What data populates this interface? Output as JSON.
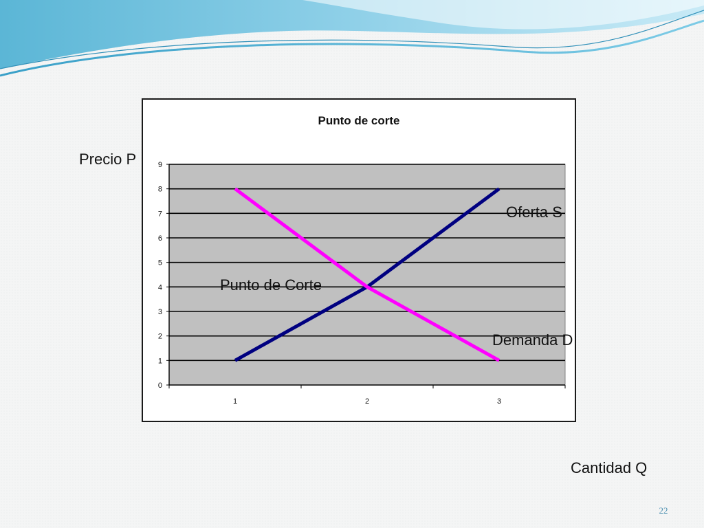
{
  "slide": {
    "page_number": "22",
    "precio_label": "Precio P",
    "cantidad_label": "Cantidad Q",
    "oferta_label": "Oferta S",
    "demanda_label": "Demanda D",
    "corte_label": "Punto de Corte"
  },
  "colors": {
    "plot_bg": "#c0c0c0",
    "grid": "#000000",
    "supply": "#000080",
    "demand": "#ff00ff",
    "accent": "#4a8fb0"
  },
  "chart_data": {
    "type": "line",
    "title": "Punto de corte",
    "x": [
      1,
      2,
      3
    ],
    "categories": [
      "1",
      "2",
      "3"
    ],
    "series": [
      {
        "values": [
          1,
          4,
          8
        ],
        "color": "#000080"
      },
      {
        "values": [
          8,
          4,
          1
        ],
        "color": "#ff00ff"
      }
    ],
    "ylim": [
      0,
      9
    ],
    "yticks": [
      0,
      1,
      2,
      3,
      4,
      5,
      6,
      7,
      8,
      9
    ],
    "grid": true,
    "legend": "none"
  }
}
